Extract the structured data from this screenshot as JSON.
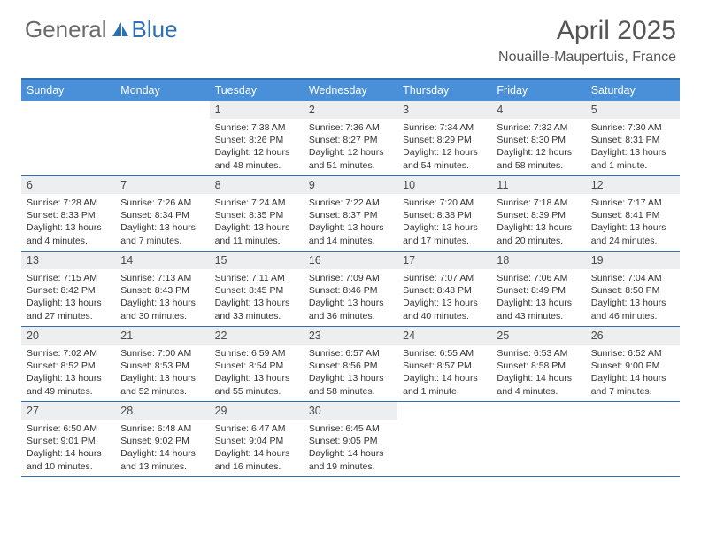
{
  "logo": {
    "text1": "General",
    "text2": "Blue"
  },
  "title": "April 2025",
  "location": "Nouaille-Maupertuis, France",
  "colors": {
    "header_bg": "#4a90d9",
    "border": "#2f6fb0",
    "daynum_bg": "#eceef0",
    "text": "#333333",
    "title_text": "#555555"
  },
  "weekdays": [
    "Sunday",
    "Monday",
    "Tuesday",
    "Wednesday",
    "Thursday",
    "Friday",
    "Saturday"
  ],
  "weeks": [
    [
      {
        "n": "",
        "sr": "",
        "ss": "",
        "dl": ""
      },
      {
        "n": "",
        "sr": "",
        "ss": "",
        "dl": ""
      },
      {
        "n": "1",
        "sr": "Sunrise: 7:38 AM",
        "ss": "Sunset: 8:26 PM",
        "dl": "Daylight: 12 hours and 48 minutes."
      },
      {
        "n": "2",
        "sr": "Sunrise: 7:36 AM",
        "ss": "Sunset: 8:27 PM",
        "dl": "Daylight: 12 hours and 51 minutes."
      },
      {
        "n": "3",
        "sr": "Sunrise: 7:34 AM",
        "ss": "Sunset: 8:29 PM",
        "dl": "Daylight: 12 hours and 54 minutes."
      },
      {
        "n": "4",
        "sr": "Sunrise: 7:32 AM",
        "ss": "Sunset: 8:30 PM",
        "dl": "Daylight: 12 hours and 58 minutes."
      },
      {
        "n": "5",
        "sr": "Sunrise: 7:30 AM",
        "ss": "Sunset: 8:31 PM",
        "dl": "Daylight: 13 hours and 1 minute."
      }
    ],
    [
      {
        "n": "6",
        "sr": "Sunrise: 7:28 AM",
        "ss": "Sunset: 8:33 PM",
        "dl": "Daylight: 13 hours and 4 minutes."
      },
      {
        "n": "7",
        "sr": "Sunrise: 7:26 AM",
        "ss": "Sunset: 8:34 PM",
        "dl": "Daylight: 13 hours and 7 minutes."
      },
      {
        "n": "8",
        "sr": "Sunrise: 7:24 AM",
        "ss": "Sunset: 8:35 PM",
        "dl": "Daylight: 13 hours and 11 minutes."
      },
      {
        "n": "9",
        "sr": "Sunrise: 7:22 AM",
        "ss": "Sunset: 8:37 PM",
        "dl": "Daylight: 13 hours and 14 minutes."
      },
      {
        "n": "10",
        "sr": "Sunrise: 7:20 AM",
        "ss": "Sunset: 8:38 PM",
        "dl": "Daylight: 13 hours and 17 minutes."
      },
      {
        "n": "11",
        "sr": "Sunrise: 7:18 AM",
        "ss": "Sunset: 8:39 PM",
        "dl": "Daylight: 13 hours and 20 minutes."
      },
      {
        "n": "12",
        "sr": "Sunrise: 7:17 AM",
        "ss": "Sunset: 8:41 PM",
        "dl": "Daylight: 13 hours and 24 minutes."
      }
    ],
    [
      {
        "n": "13",
        "sr": "Sunrise: 7:15 AM",
        "ss": "Sunset: 8:42 PM",
        "dl": "Daylight: 13 hours and 27 minutes."
      },
      {
        "n": "14",
        "sr": "Sunrise: 7:13 AM",
        "ss": "Sunset: 8:43 PM",
        "dl": "Daylight: 13 hours and 30 minutes."
      },
      {
        "n": "15",
        "sr": "Sunrise: 7:11 AM",
        "ss": "Sunset: 8:45 PM",
        "dl": "Daylight: 13 hours and 33 minutes."
      },
      {
        "n": "16",
        "sr": "Sunrise: 7:09 AM",
        "ss": "Sunset: 8:46 PM",
        "dl": "Daylight: 13 hours and 36 minutes."
      },
      {
        "n": "17",
        "sr": "Sunrise: 7:07 AM",
        "ss": "Sunset: 8:48 PM",
        "dl": "Daylight: 13 hours and 40 minutes."
      },
      {
        "n": "18",
        "sr": "Sunrise: 7:06 AM",
        "ss": "Sunset: 8:49 PM",
        "dl": "Daylight: 13 hours and 43 minutes."
      },
      {
        "n": "19",
        "sr": "Sunrise: 7:04 AM",
        "ss": "Sunset: 8:50 PM",
        "dl": "Daylight: 13 hours and 46 minutes."
      }
    ],
    [
      {
        "n": "20",
        "sr": "Sunrise: 7:02 AM",
        "ss": "Sunset: 8:52 PM",
        "dl": "Daylight: 13 hours and 49 minutes."
      },
      {
        "n": "21",
        "sr": "Sunrise: 7:00 AM",
        "ss": "Sunset: 8:53 PM",
        "dl": "Daylight: 13 hours and 52 minutes."
      },
      {
        "n": "22",
        "sr": "Sunrise: 6:59 AM",
        "ss": "Sunset: 8:54 PM",
        "dl": "Daylight: 13 hours and 55 minutes."
      },
      {
        "n": "23",
        "sr": "Sunrise: 6:57 AM",
        "ss": "Sunset: 8:56 PM",
        "dl": "Daylight: 13 hours and 58 minutes."
      },
      {
        "n": "24",
        "sr": "Sunrise: 6:55 AM",
        "ss": "Sunset: 8:57 PM",
        "dl": "Daylight: 14 hours and 1 minute."
      },
      {
        "n": "25",
        "sr": "Sunrise: 6:53 AM",
        "ss": "Sunset: 8:58 PM",
        "dl": "Daylight: 14 hours and 4 minutes."
      },
      {
        "n": "26",
        "sr": "Sunrise: 6:52 AM",
        "ss": "Sunset: 9:00 PM",
        "dl": "Daylight: 14 hours and 7 minutes."
      }
    ],
    [
      {
        "n": "27",
        "sr": "Sunrise: 6:50 AM",
        "ss": "Sunset: 9:01 PM",
        "dl": "Daylight: 14 hours and 10 minutes."
      },
      {
        "n": "28",
        "sr": "Sunrise: 6:48 AM",
        "ss": "Sunset: 9:02 PM",
        "dl": "Daylight: 14 hours and 13 minutes."
      },
      {
        "n": "29",
        "sr": "Sunrise: 6:47 AM",
        "ss": "Sunset: 9:04 PM",
        "dl": "Daylight: 14 hours and 16 minutes."
      },
      {
        "n": "30",
        "sr": "Sunrise: 6:45 AM",
        "ss": "Sunset: 9:05 PM",
        "dl": "Daylight: 14 hours and 19 minutes."
      },
      {
        "n": "",
        "sr": "",
        "ss": "",
        "dl": ""
      },
      {
        "n": "",
        "sr": "",
        "ss": "",
        "dl": ""
      },
      {
        "n": "",
        "sr": "",
        "ss": "",
        "dl": ""
      }
    ]
  ]
}
